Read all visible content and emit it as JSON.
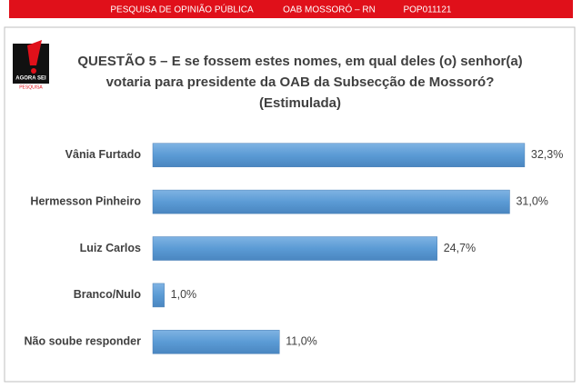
{
  "header": {
    "items": [
      "PESQUISA DE OPINIÃO PÚBLICA",
      "OAB MOSSORÓ – RN",
      "POP011121"
    ]
  },
  "logo": {
    "name": "AGORA SEI",
    "tagline": "PESQUISA"
  },
  "chart_data": {
    "type": "bar",
    "orientation": "horizontal",
    "title": [
      "QUESTÃO 5 – E se fossem estes nomes, em qual deles (o) senhor(a)",
      "votaria para presidente da OAB da Subsecção de Mossoró?",
      "(Estimulada)"
    ],
    "categories": [
      "Vânia Furtado",
      "Hermesson Pinheiro",
      "Luiz Carlos",
      "Branco/Nulo",
      "Não soube responder"
    ],
    "values": [
      32.3,
      31.0,
      24.7,
      1.0,
      11.0
    ],
    "value_labels": [
      "32,3%",
      "31,0%",
      "24,7%",
      "1,0%",
      "11,0%"
    ],
    "color": "#5b9bd5",
    "xlim": [
      0,
      35
    ]
  }
}
